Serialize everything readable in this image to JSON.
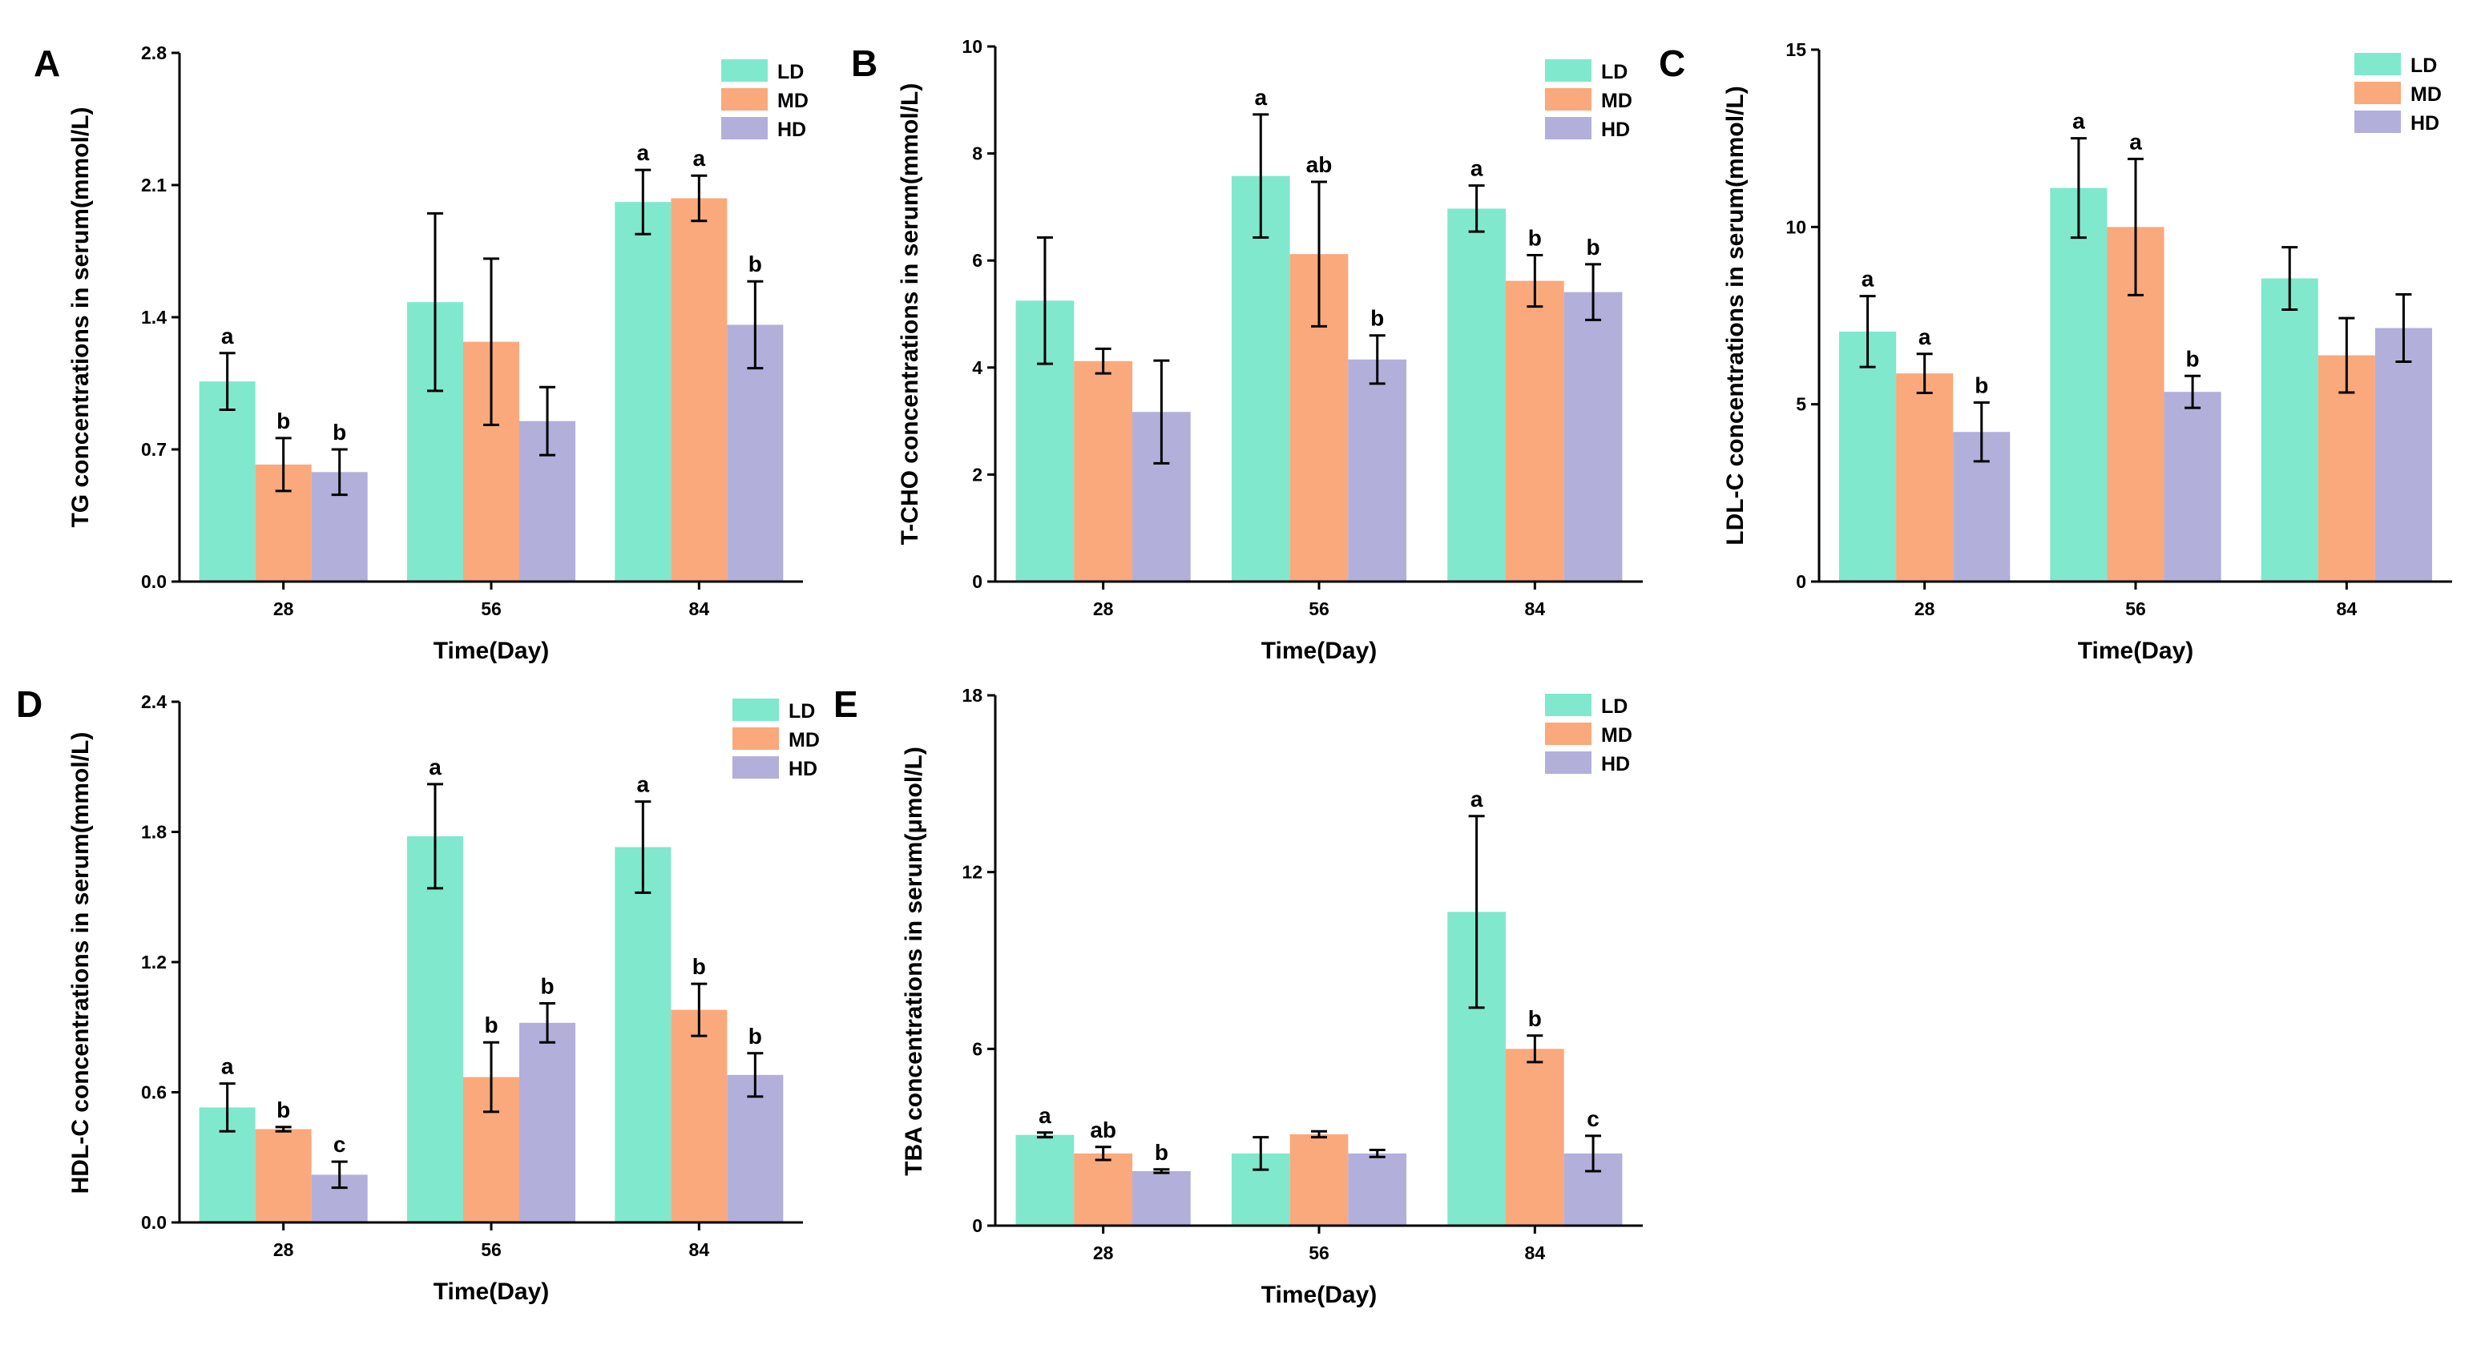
{
  "colors": {
    "LD": "#80E8CD",
    "MD": "#F9A97B",
    "HD": "#B2AFDB"
  },
  "legend": [
    "LD",
    "MD",
    "HD"
  ],
  "chart_data": [
    {
      "panel": "A",
      "type": "bar",
      "title": "",
      "xlabel": "Time(Day)",
      "ylabel": "TG concentrations in serum(mmol/L)",
      "categories": [
        "28",
        "56",
        "84"
      ],
      "ylim": [
        0,
        2.8
      ],
      "yticks": [
        "0.0",
        "0.7",
        "1.4",
        "2.1",
        "2.8"
      ],
      "legend_position": "top-right",
      "series": [
        {
          "name": "LD",
          "values": [
            1.06,
            1.48,
            2.01
          ],
          "errors": [
            0.15,
            0.47,
            0.17
          ],
          "labels": [
            "a",
            "",
            "a"
          ]
        },
        {
          "name": "MD",
          "values": [
            0.62,
            1.27,
            2.03
          ],
          "errors": [
            0.14,
            0.44,
            0.12
          ],
          "labels": [
            "b",
            "",
            "a"
          ]
        },
        {
          "name": "HD",
          "values": [
            0.58,
            0.85,
            1.36
          ],
          "errors": [
            0.12,
            0.18,
            0.23
          ],
          "labels": [
            "b",
            "",
            "b"
          ]
        }
      ]
    },
    {
      "panel": "B",
      "type": "bar",
      "title": "",
      "xlabel": "Time(Day)",
      "ylabel": "T-CHO concentrations in serum(mmol/L)",
      "categories": [
        "28",
        "56",
        "84"
      ],
      "ylim": [
        0,
        10
      ],
      "yticks": [
        "0",
        "2",
        "4",
        "6",
        "8",
        "10"
      ],
      "legend_position": "top-right",
      "series": [
        {
          "name": "LD",
          "values": [
            5.25,
            7.58,
            6.97
          ],
          "errors": [
            1.18,
            1.15,
            0.43
          ],
          "labels": [
            "",
            "a",
            "a"
          ]
        },
        {
          "name": "MD",
          "values": [
            4.12,
            6.12,
            5.62
          ],
          "errors": [
            0.23,
            1.35,
            0.48
          ],
          "labels": [
            "",
            "ab",
            "b"
          ]
        },
        {
          "name": "HD",
          "values": [
            3.17,
            4.15,
            5.41
          ],
          "errors": [
            0.96,
            0.45,
            0.52
          ],
          "labels": [
            "",
            "b",
            "b"
          ]
        }
      ]
    },
    {
      "panel": "C",
      "type": "bar",
      "title": "",
      "xlabel": "Time(Day)",
      "ylabel": "LDL-C concentrations in serum(mmol/L)",
      "categories": [
        "28",
        "56",
        "84"
      ],
      "ylim": [
        0,
        15
      ],
      "yticks": [
        "0",
        "5",
        "10",
        "15"
      ],
      "legend_position": "top-right",
      "series": [
        {
          "name": "LD",
          "values": [
            7.05,
            11.1,
            8.55
          ],
          "errors": [
            1.0,
            1.4,
            0.88
          ],
          "labels": [
            "a",
            "a",
            ""
          ]
        },
        {
          "name": "MD",
          "values": [
            5.87,
            10.0,
            6.38
          ],
          "errors": [
            0.55,
            1.92,
            1.05
          ],
          "labels": [
            "a",
            "a",
            ""
          ]
        },
        {
          "name": "HD",
          "values": [
            4.22,
            5.35,
            7.15
          ],
          "errors": [
            0.83,
            0.45,
            0.95
          ],
          "labels": [
            "b",
            "b",
            ""
          ]
        }
      ]
    },
    {
      "panel": "D",
      "type": "bar",
      "title": "",
      "xlabel": "Time(Day)",
      "ylabel": "HDL-C concentrations in serum(mmol/L)",
      "categories": [
        "28",
        "56",
        "84"
      ],
      "ylim": [
        0,
        2.4
      ],
      "yticks": [
        "0.0",
        "0.6",
        "1.2",
        "1.8",
        "2.4"
      ],
      "legend_position": "top-right",
      "series": [
        {
          "name": "LD",
          "values": [
            0.53,
            1.78,
            1.73
          ],
          "errors": [
            0.11,
            0.24,
            0.21
          ],
          "labels": [
            "a",
            "a",
            "a"
          ]
        },
        {
          "name": "MD",
          "values": [
            0.43,
            0.67,
            0.98
          ],
          "errors": [
            0.01,
            0.16,
            0.12
          ],
          "labels": [
            "b",
            "b",
            "b"
          ]
        },
        {
          "name": "HD",
          "values": [
            0.22,
            0.92,
            0.68
          ],
          "errors": [
            0.06,
            0.09,
            0.1
          ],
          "labels": [
            "c",
            "b",
            "b"
          ]
        }
      ]
    },
    {
      "panel": "E",
      "type": "bar",
      "title": "",
      "xlabel": "Time(Day)",
      "ylabel": "TBA concentrations in serum(μmol/L)",
      "categories": [
        "28",
        "56",
        "84"
      ],
      "ylim": [
        0,
        18
      ],
      "yticks": [
        "0",
        "6",
        "12",
        "18"
      ],
      "legend_position": "top-right",
      "series": [
        {
          "name": "LD",
          "values": [
            3.08,
            2.45,
            10.65
          ],
          "errors": [
            0.08,
            0.55,
            3.25
          ],
          "labels": [
            "a",
            "",
            "a"
          ]
        },
        {
          "name": "MD",
          "values": [
            2.45,
            3.1,
            6.0
          ],
          "errors": [
            0.22,
            0.1,
            0.45
          ],
          "labels": [
            "ab",
            "",
            "b"
          ]
        },
        {
          "name": "HD",
          "values": [
            1.85,
            2.45,
            2.45
          ],
          "errors": [
            0.06,
            0.12,
            0.6
          ],
          "labels": [
            "b",
            "",
            "c"
          ]
        }
      ]
    }
  ]
}
